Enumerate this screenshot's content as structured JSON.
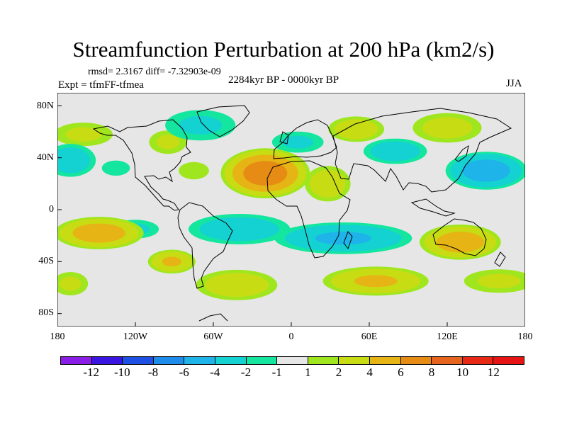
{
  "title": "Streamfunction Perturbation at 200 hPa (km2/s)",
  "stats": "rmsd= 2.3167 diff= -7.32903e-09",
  "experiment": "Expt = tfmFF-tfmea",
  "period": "2284kyr BP - 0000kyr BP",
  "season": "JJA",
  "axes": {
    "lat_ticks": [
      "80N",
      "40N",
      "0",
      "40S",
      "80S"
    ],
    "lon_ticks": [
      "180",
      "120W",
      "60W",
      "0",
      "60E",
      "120E",
      "180"
    ]
  },
  "colorbar": {
    "labels": [
      "-12",
      "-10",
      "-8",
      "-6",
      "-4",
      "-2",
      "-1",
      "1",
      "2",
      "4",
      "6",
      "8",
      "10",
      "12"
    ],
    "colors": [
      "#8a1ee6",
      "#3a14e0",
      "#1e50e6",
      "#1e8cea",
      "#1eb4ea",
      "#14d2d2",
      "#14e6a0",
      "#e6e6e6",
      "#a0e61e",
      "#c8dc14",
      "#e6b414",
      "#e68c14",
      "#e6641e",
      "#e62814",
      "#e61414"
    ]
  },
  "field": {
    "lon_range": [
      -180,
      180
    ],
    "lat_range": [
      -90,
      90
    ],
    "blobs": [
      {
        "lon": -20,
        "lat": 28,
        "rlon": 32,
        "rlat": 18,
        "value": 7
      },
      {
        "lon": 28,
        "lat": 20,
        "rlon": 18,
        "rlat": 14,
        "value": 3
      },
      {
        "lon": 50,
        "lat": 62,
        "rlon": 22,
        "rlat": 10,
        "value": 3
      },
      {
        "lon": 120,
        "lat": 63,
        "rlon": 28,
        "rlat": 12,
        "value": 2.5
      },
      {
        "lon": -95,
        "lat": 52,
        "rlon": 16,
        "rlat": 10,
        "value": 2
      },
      {
        "lon": -160,
        "lat": 58,
        "rlon": 25,
        "rlat": 10,
        "value": 2
      },
      {
        "lon": -75,
        "lat": 30,
        "rlon": 14,
        "rlat": 8,
        "value": 1.5
      },
      {
        "lon": -148,
        "lat": -18,
        "rlon": 33,
        "rlat": 12,
        "value": 5
      },
      {
        "lon": -92,
        "lat": -40,
        "rlon": 18,
        "rlat": 9,
        "value": 4
      },
      {
        "lon": 130,
        "lat": -25,
        "rlon": 30,
        "rlat": 13,
        "value": 5
      },
      {
        "lon": 65,
        "lat": -55,
        "rlon": 40,
        "rlat": 11,
        "value": 4
      },
      {
        "lon": -42,
        "lat": -58,
        "rlon": 32,
        "rlat": 12,
        "value": 3
      },
      {
        "lon": 160,
        "lat": -55,
        "rlon": 30,
        "rlat": 10,
        "value": 2
      },
      {
        "lon": -170,
        "lat": -57,
        "rlon": 15,
        "rlat": 10,
        "value": 2
      },
      {
        "lon": -170,
        "lat": 38,
        "rlon": 20,
        "rlat": 13,
        "value": -3
      },
      {
        "lon": -135,
        "lat": 32,
        "rlon": 13,
        "rlat": 7,
        "value": -1.5
      },
      {
        "lon": -70,
        "lat": 65,
        "rlon": 30,
        "rlat": 13,
        "value": -2
      },
      {
        "lon": 5,
        "lat": 52,
        "rlon": 22,
        "rlat": 9,
        "value": -2
      },
      {
        "lon": 80,
        "lat": 45,
        "rlon": 25,
        "rlat": 10,
        "value": -3
      },
      {
        "lon": 150,
        "lat": 30,
        "rlon": 30,
        "rlat": 14,
        "value": -5
      },
      {
        "lon": -40,
        "lat": -15,
        "rlon": 40,
        "rlat": 12,
        "value": -3
      },
      {
        "lon": 40,
        "lat": -22,
        "rlon": 52,
        "rlat": 12,
        "value": -4
      },
      {
        "lon": -120,
        "lat": -15,
        "rlon": 20,
        "rlat": 8,
        "value": -2
      }
    ]
  }
}
